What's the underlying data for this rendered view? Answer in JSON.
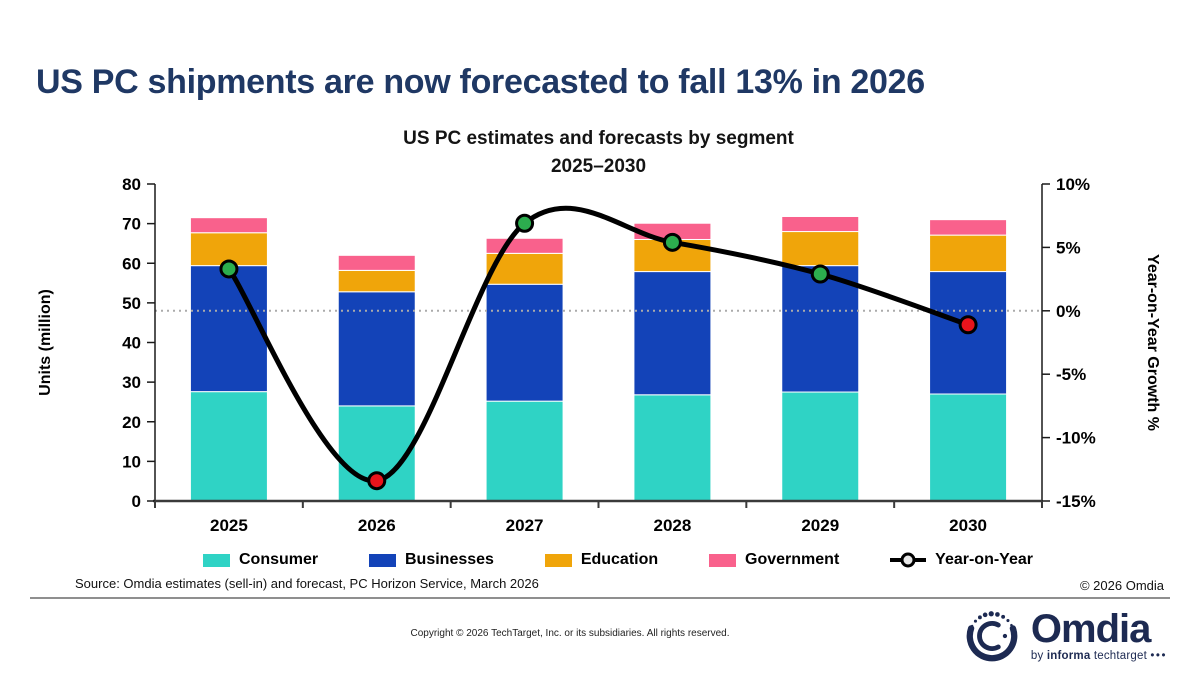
{
  "header": {
    "title": "US PC shipments are now forecasted to fall 13% in 2026"
  },
  "chart_data": {
    "type": "bar",
    "subtype": "stacked-bars-with-line",
    "title": "US PC estimates and forecasts by segment",
    "subtitle": "2025–2030",
    "categories": [
      "2025",
      "2026",
      "2027",
      "2028",
      "2029",
      "2030"
    ],
    "series": [
      {
        "name": "Consumer",
        "color": "#2FD3C5",
        "values": [
          27.6,
          24.0,
          25.2,
          26.8,
          27.5,
          27.0
        ]
      },
      {
        "name": "Businesses",
        "color": "#1343B8",
        "values": [
          31.8,
          28.8,
          29.5,
          31.1,
          31.9,
          30.9
        ]
      },
      {
        "name": "Education",
        "color": "#F0A50A",
        "values": [
          8.3,
          5.4,
          7.8,
          8.1,
          8.6,
          9.2
        ]
      },
      {
        "name": "Government",
        "color": "#F9618C",
        "values": [
          3.8,
          3.8,
          3.8,
          4.1,
          3.8,
          3.9
        ]
      }
    ],
    "line_series": {
      "name": "Year-on-Year",
      "values_pct": [
        3.3,
        -13.4,
        6.9,
        5.4,
        2.9,
        -1.1
      ],
      "line_color": "#000000",
      "marker_positive_color": "#2CAD4E",
      "marker_negative_color": "#E8141C"
    },
    "ylabel": "Units (million)",
    "ylim": [
      0,
      80
    ],
    "yticks": [
      0,
      10,
      20,
      30,
      40,
      50,
      60,
      70,
      80
    ],
    "y2label": "Year-on-Year Growth %",
    "y2lim": [
      -15,
      10
    ],
    "y2ticks": [
      10,
      5,
      0,
      -5,
      -10,
      -15
    ],
    "y2tick_suffix": "%",
    "zero_line_pct": 0,
    "grid": "off",
    "legend_position": "bottom"
  },
  "source": {
    "text": "Source: Omdia estimates (sell-in) and forecast, PC Horizon Service, March 2026",
    "copyright": "© 2026 Omdia"
  },
  "footer": {
    "copyright": "Copyright © 2026 TechTarget, Inc. or its subsidiaries. All rights reserved.",
    "logo": {
      "name": "Omdia",
      "byline_by": "by",
      "byline_brand": "informa",
      "byline_rest": "techtarget",
      "byline_dots": "•••",
      "brand_color": "#1D2A52"
    }
  }
}
